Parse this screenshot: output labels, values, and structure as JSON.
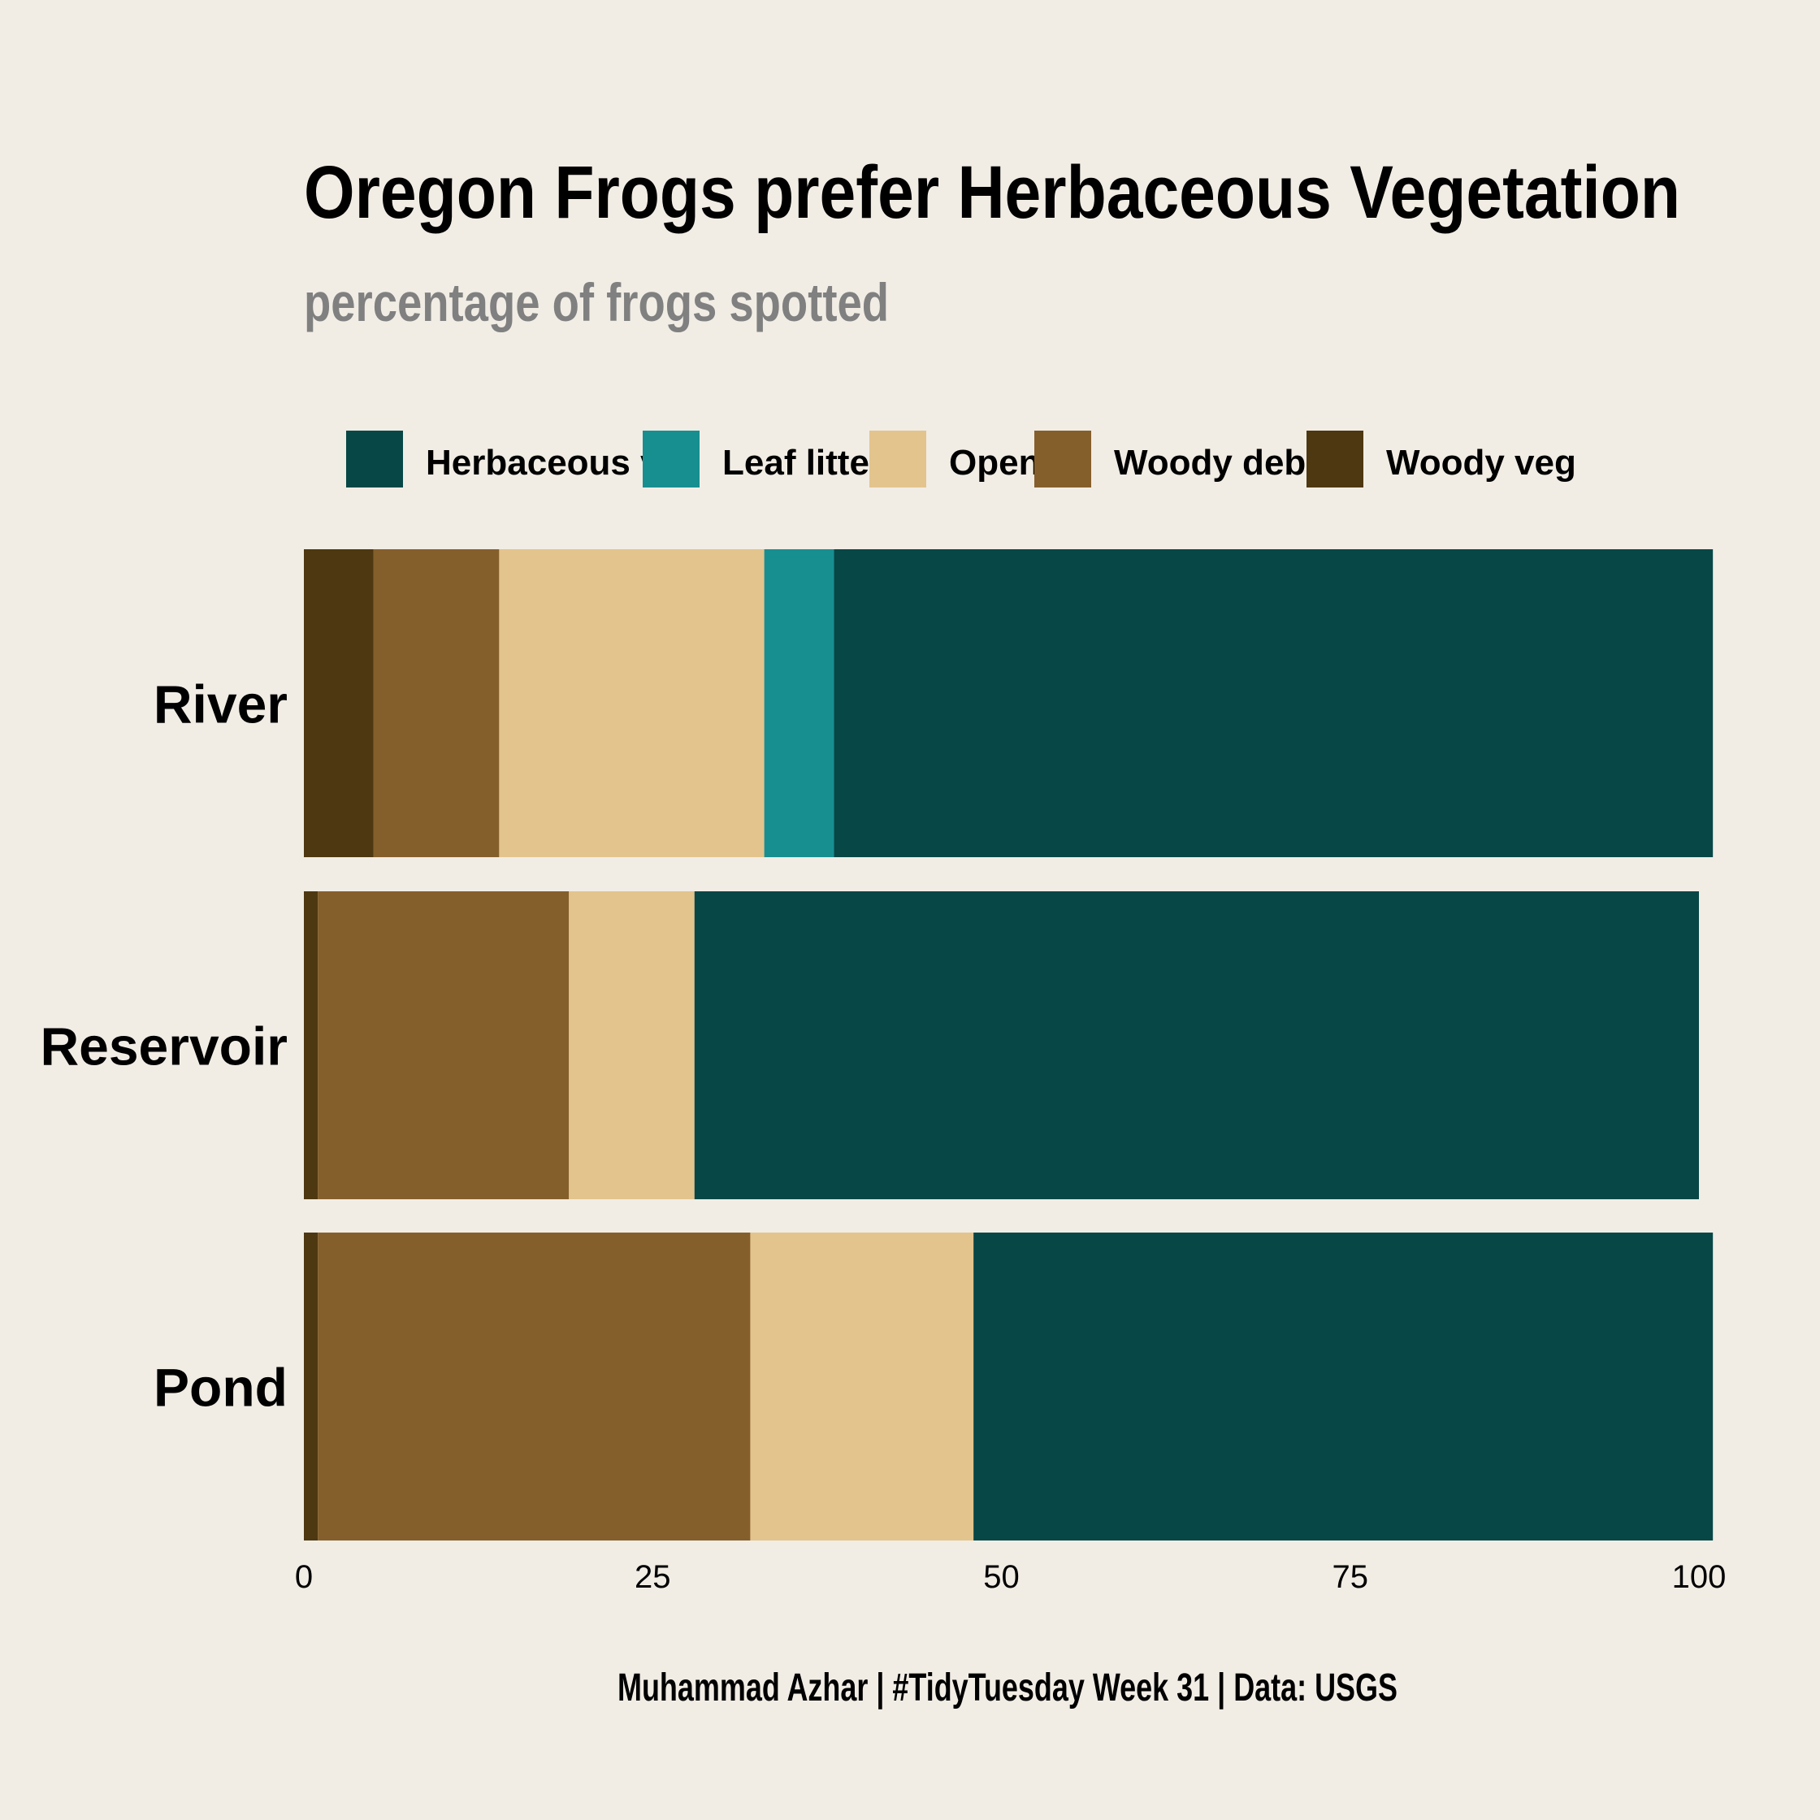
{
  "chart_data": {
    "type": "bar",
    "orientation": "horizontal",
    "stacked": true,
    "title": "Oregon Frogs prefer Herbaceous Vegetation",
    "subtitle": "percentage of frogs spotted",
    "caption": "Muhammad Azhar | #TidyTuesday Week 31 | Data: USGS",
    "categories": [
      "River",
      "Reservoir",
      "Pond"
    ],
    "xlim": [
      0,
      100
    ],
    "x_ticks": [
      0,
      25,
      50,
      75,
      100
    ],
    "grid": false,
    "legend_position": "top",
    "series": [
      {
        "name": "Woody veg",
        "color": "#4e3811",
        "values": [
          5,
          1,
          1
        ]
      },
      {
        "name": "Woody debris",
        "color": "#855f2b",
        "values": [
          9,
          18,
          31
        ]
      },
      {
        "name": "Open",
        "color": "#e3c48d",
        "values": [
          19,
          9,
          16
        ]
      },
      {
        "name": "Leaf litter",
        "color": "#178f91",
        "values": [
          5,
          0,
          0
        ]
      },
      {
        "name": "Herbaceous veg",
        "color": "#074746",
        "values": [
          63,
          72,
          53
        ]
      }
    ],
    "legend_order": [
      "Herbaceous veg",
      "Leaf litter",
      "Open",
      "Woody debris",
      "Woody veg"
    ]
  },
  "colors": {
    "background": "#f1ede5",
    "title": "#000000",
    "subtitle": "#808080",
    "text": "#000000"
  }
}
